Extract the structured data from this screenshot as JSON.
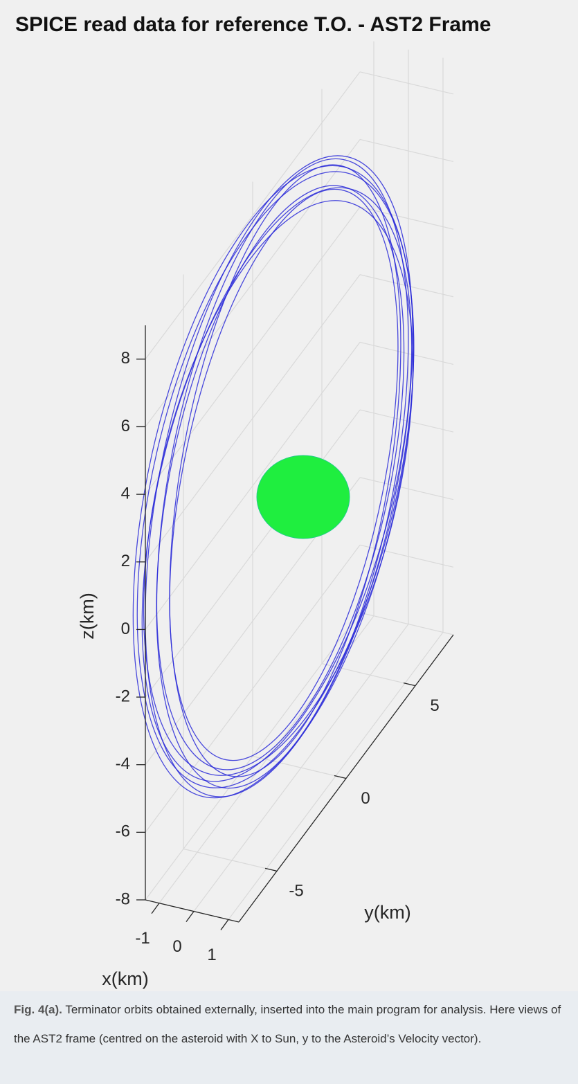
{
  "chart_data": {
    "type": "line3d",
    "title": "SPICE read data for reference T.O. - AST2 Frame",
    "xlabel": "x(km)",
    "ylabel": "y(km)",
    "zlabel": "z(km)",
    "xlim": [
      -1.4,
      1.3
    ],
    "ylim": [
      -7.75,
      7.75
    ],
    "zlim": [
      -8,
      9
    ],
    "xticks": [
      -1,
      0,
      1
    ],
    "yticks": [
      -5,
      0,
      5
    ],
    "zticks": [
      -8,
      -6,
      -4,
      -2,
      0,
      2,
      4,
      6,
      8
    ],
    "grid": true
  },
  "caption": {
    "label": "Fig. 4(a).",
    "text": "Terminator orbits obtained externally, inserted into the main program for analysis. Here views of the AST2 frame (centred on the asteroid with X to Sun, y to the Asteroid’s Velocity vector)."
  }
}
